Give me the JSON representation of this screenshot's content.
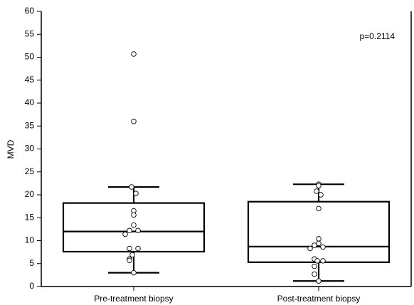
{
  "chart_data": {
    "type": "box",
    "ylabel": "MVD",
    "annotation": "p=0.2114",
    "categories": [
      "Pre-treatment biopsy",
      "Post-treatment biopsy"
    ],
    "boxes": [
      {
        "whislo": 3,
        "q1": 7.6,
        "median": 12,
        "q3": 18.2,
        "whishi": 21.7,
        "points": [
          50.7,
          36,
          21.7,
          20.3,
          16.5,
          15.6,
          13.4,
          12.2,
          12.2,
          11.4,
          8.3,
          8.3,
          6.9,
          6,
          5.7,
          3
        ]
      },
      {
        "whislo": 1.2,
        "q1": 5.3,
        "median": 8.7,
        "q3": 18.5,
        "whishi": 22.3,
        "points": [
          22.3,
          22,
          20.8,
          20,
          17,
          10.4,
          9.4,
          9,
          8.6,
          8.3,
          6,
          5.6,
          5.6,
          4.4,
          2.7,
          1.2
        ]
      }
    ],
    "ylim": [
      0,
      60
    ],
    "yticks": [
      0,
      5,
      10,
      15,
      20,
      25,
      30,
      35,
      40,
      45,
      50,
      55,
      60
    ],
    "color": "#000000"
  }
}
